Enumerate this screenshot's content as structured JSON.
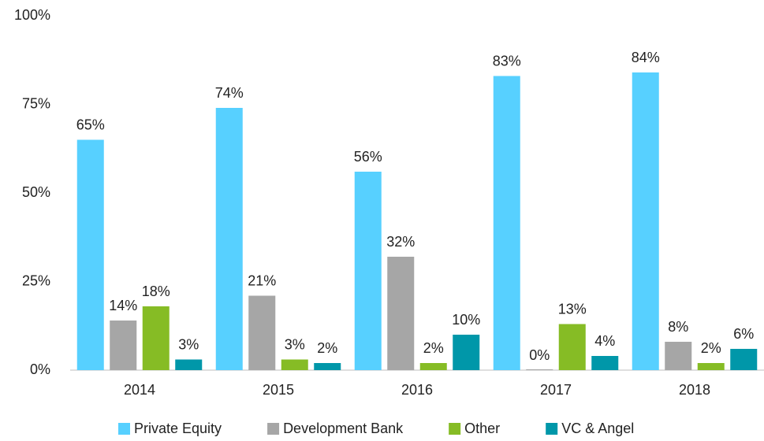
{
  "chart_data": {
    "type": "bar",
    "categories": [
      "2014",
      "2015",
      "2016",
      "2017",
      "2018"
    ],
    "series": [
      {
        "name": "Private Equity",
        "color": "#57d0ff",
        "values": [
          65,
          74,
          56,
          83,
          84
        ],
        "value_labels": [
          "65%",
          "74%",
          "56%",
          "83%",
          "84%"
        ]
      },
      {
        "name": "Development Bank",
        "color": "#a6a6a6",
        "values": [
          14,
          21,
          32,
          0,
          8
        ],
        "value_labels": [
          "14%",
          "21%",
          "32%",
          "0%",
          "8%"
        ]
      },
      {
        "name": "Other",
        "color": "#86bc25",
        "values": [
          18,
          3,
          2,
          13,
          2
        ],
        "value_labels": [
          "18%",
          "3%",
          "2%",
          "13%",
          "2%"
        ]
      },
      {
        "name": "VC & Angel",
        "color": "#0097a9",
        "values": [
          3,
          2,
          10,
          4,
          6
        ],
        "value_labels": [
          "3%",
          "2%",
          "10%",
          "4%",
          "6%"
        ]
      }
    ],
    "ylim": [
      0,
      100
    ],
    "yticks": [
      {
        "value": 0,
        "label": "0%"
      },
      {
        "value": 25,
        "label": "25%"
      },
      {
        "value": 50,
        "label": "50%"
      },
      {
        "value": 75,
        "label": "75%"
      },
      {
        "value": 100,
        "label": "100%"
      }
    ],
    "legend": "bottom"
  }
}
